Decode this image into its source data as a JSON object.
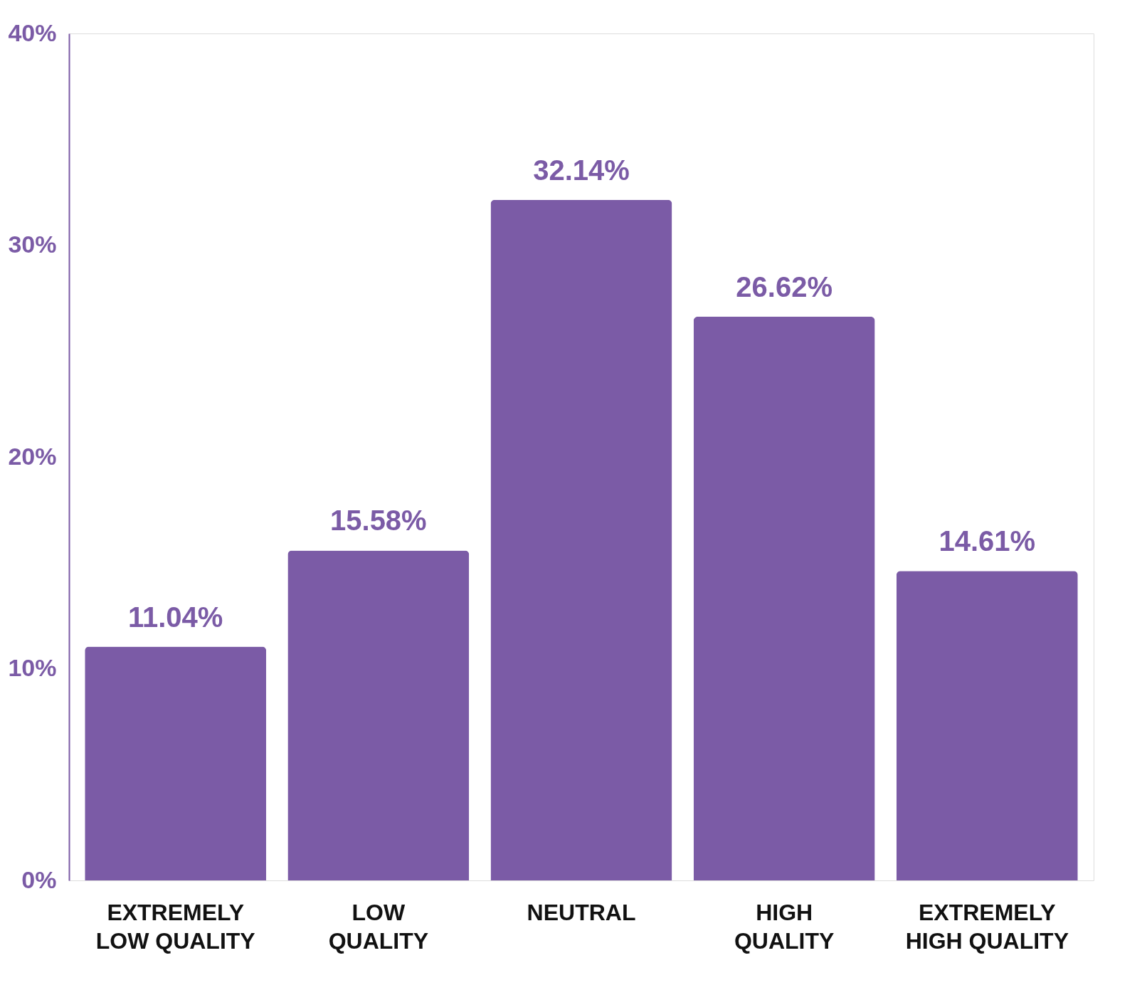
{
  "chart_data": {
    "type": "bar",
    "categories": [
      "EXTREMELY LOW QUALITY",
      "LOW QUALITY",
      "NEUTRAL",
      "HIGH QUALITY",
      "EXTREMELY HIGH QUALITY"
    ],
    "values": [
      11.04,
      15.58,
      32.14,
      26.62,
      14.61
    ],
    "value_labels": [
      "11.04%",
      "15.58%",
      "32.14%",
      "26.62%",
      "14.61%"
    ],
    "color": "#7b5ba6",
    "ylim": [
      0,
      40
    ],
    "yticks": [
      {
        "value": 0,
        "label": "0%"
      },
      {
        "value": 10,
        "label": "10%"
      },
      {
        "value": 20,
        "label": "20%"
      },
      {
        "value": 30,
        "label": "30%"
      },
      {
        "value": 40,
        "label": "40%"
      }
    ],
    "grid": false
  }
}
